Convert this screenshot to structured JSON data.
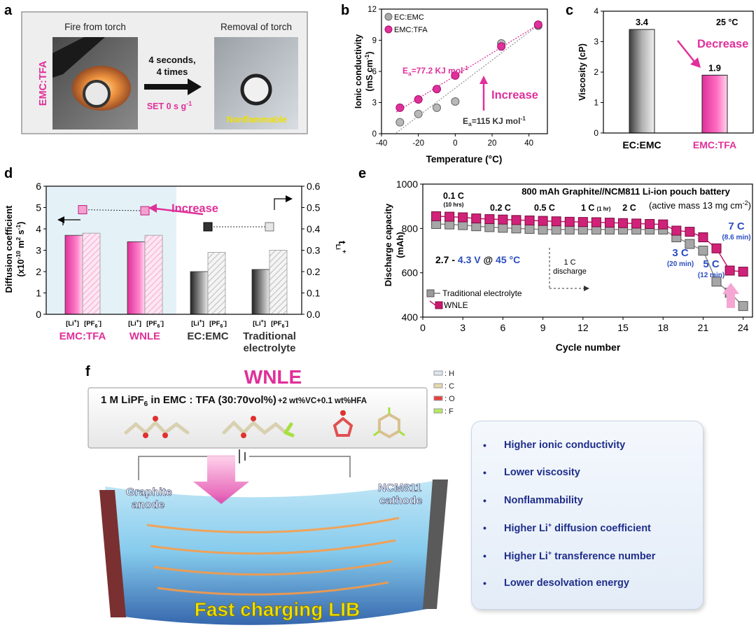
{
  "panels": {
    "a": "a",
    "b": "b",
    "c": "c",
    "d": "d",
    "e": "e",
    "f": "f"
  },
  "colors": {
    "pink": "#e0309a",
    "gray": "#777777",
    "blue": "#2a4dbf",
    "navy": "#1f2e8a",
    "yellow": "#f0e000"
  },
  "panel_a": {
    "side_label": "EMC:TFA",
    "left_title": "Fire from torch",
    "right_title": "Removal of torch",
    "arrow_text_line1": "4 seconds,",
    "arrow_text_line2": "4 times",
    "set_text": "SET 0 s g",
    "set_sup": "-1",
    "nonflammable": "Nonflammable"
  },
  "chart_data": [
    {
      "panel": "b",
      "type": "scatter",
      "xlabel": "Temperature (°C)",
      "ylabel_line1": "Ionic conductivity",
      "ylabel_line2": "(mS cm",
      "ylabel_sup": "-1",
      "ylabel_close": ")",
      "xlim": [
        -40,
        50
      ],
      "ylim": [
        0,
        12
      ],
      "xticks": [
        "-40",
        "-20",
        "0",
        "20",
        "40"
      ],
      "yticks": [
        "0",
        "3",
        "6",
        "9",
        "12"
      ],
      "xtick_values": [
        -40,
        -20,
        0,
        20,
        40
      ],
      "ytick_values": [
        0,
        3,
        6,
        9,
        12
      ],
      "series": [
        {
          "name": "EC:EMC",
          "color": "#9a9a9a",
          "x": [
            -30,
            -20,
            -10,
            0,
            25,
            45
          ],
          "y": [
            1.1,
            1.9,
            2.5,
            3.1,
            8.7,
            10.4
          ]
        },
        {
          "name": "EMC:TFA",
          "color": "#e0309a",
          "x": [
            -30,
            -20,
            -10,
            0,
            25,
            45
          ],
          "y": [
            2.5,
            3.3,
            4.3,
            5.6,
            8.4,
            10.5
          ]
        }
      ],
      "annotations": {
        "ea_tfa_prefix": "E",
        "ea_tfa_sub": "a",
        "ea_tfa_value": "=77.2 KJ mol",
        "ea_emc_prefix": "E",
        "ea_emc_sub": "a",
        "ea_emc_value": "=115 KJ mol",
        "ea_unit_sup": "-1",
        "increase": "Increase"
      }
    },
    {
      "panel": "c",
      "type": "bar",
      "categories": [
        "EC:EMC",
        "EMC:TFA"
      ],
      "values": [
        3.4,
        1.9
      ],
      "value_labels": [
        "3.4",
        "1.9"
      ],
      "ylabel": "Viscosity (cP)",
      "ylim": [
        0,
        4
      ],
      "yticks": [
        "0",
        "1",
        "2",
        "3",
        "4"
      ],
      "ytick_values": [
        0,
        1,
        2,
        3,
        4
      ],
      "annotations": {
        "temperature": "25 °C",
        "decrease": "Decrease"
      }
    },
    {
      "panel": "d",
      "type": "bar",
      "groups": [
        "EMC:TFA",
        "WNLE",
        "EC:EMC",
        "Traditional electrolyte"
      ],
      "group_label_lines": [
        [
          "EMC:TFA"
        ],
        [
          "WNLE"
        ],
        [
          "EC:EMC"
        ],
        [
          "Traditional",
          "electrolyte"
        ]
      ],
      "sub_labels": {
        "li": "[Li",
        "li_sup": "+",
        "li_close": "]",
        "pf": "[PF",
        "pf_sub": "6",
        "pf_sup": "-",
        "pf_close": "]"
      },
      "diffusion_li": [
        3.7,
        3.4,
        2.0,
        2.1
      ],
      "diffusion_pf6": [
        3.8,
        3.7,
        2.9,
        3.0
      ],
      "transference_number": [
        0.49,
        0.485,
        0.41,
        0.41
      ],
      "ylabel_line1": "Diffusion coefficient",
      "ylabel_line2": "(x10",
      "ylabel_sup1": "-10",
      "ylabel_mid": " m",
      "ylabel_sup2": "2",
      "ylabel_end": " s",
      "ylabel_sup3": "-1",
      "ylabel_close": ")",
      "y2label": "t",
      "y2label_sub": "Li",
      "y2label_sup": "+",
      "ylim": [
        0,
        6
      ],
      "y2lim": [
        0,
        0.6
      ],
      "yticks": [
        "0",
        "1",
        "2",
        "3",
        "4",
        "5",
        "6"
      ],
      "ytick_values": [
        0,
        1,
        2,
        3,
        4,
        5,
        6
      ],
      "y2ticks": [
        "0.0",
        "0.1",
        "0.2",
        "0.3",
        "0.4",
        "0.5",
        "0.6"
      ],
      "y2tick_values": [
        0,
        0.1,
        0.2,
        0.3,
        0.4,
        0.5,
        0.6
      ],
      "annotations": {
        "increase": "Increase"
      }
    },
    {
      "panel": "e",
      "type": "line",
      "title": "800 mAh Graphite//NCM811 Li-ion pouch battery",
      "title_sub_prefix": "(active mass 13 mg cm",
      "title_sub_sup": "-2",
      "title_sub_close": ")",
      "xlabel": "Cycle number",
      "ylabel_line1": "Discharge capacity",
      "ylabel_line2": "(mAh)",
      "xlim": [
        0,
        24.7
      ],
      "ylim": [
        400,
        1000
      ],
      "xticks": [
        "0",
        "3",
        "6",
        "9",
        "12",
        "15",
        "18",
        "21",
        "24"
      ],
      "xtick_values": [
        0,
        3,
        6,
        9,
        12,
        15,
        18,
        21,
        24
      ],
      "yticks": [
        "400",
        "600",
        "800",
        "1000"
      ],
      "ytick_values": [
        400,
        600,
        800,
        1000
      ],
      "series": [
        {
          "name": "Traditional electrolyte",
          "color": "#8a8a8a",
          "x": [
            1,
            2,
            3,
            4,
            5,
            6,
            7,
            8,
            9,
            10,
            11,
            12,
            13,
            14,
            15,
            16,
            17,
            18,
            19,
            20,
            21,
            22,
            23,
            24
          ],
          "y": [
            820,
            818,
            815,
            810,
            806,
            803,
            800,
            798,
            795,
            795,
            795,
            795,
            795,
            795,
            795,
            795,
            795,
            795,
            760,
            730,
            700,
            560,
            510,
            450
          ]
        },
        {
          "name": "WNLE",
          "color": "#c8186e",
          "x": [
            1,
            2,
            3,
            4,
            5,
            6,
            7,
            8,
            9,
            10,
            11,
            12,
            13,
            14,
            15,
            16,
            17,
            18,
            19,
            20,
            21,
            22,
            23,
            24
          ],
          "y": [
            855,
            853,
            850,
            845,
            842,
            840,
            838,
            836,
            834,
            832,
            830,
            829,
            828,
            826,
            824,
            822,
            820,
            818,
            790,
            785,
            760,
            710,
            610,
            605
          ]
        }
      ],
      "annotations": {
        "rate_01c": "0.1 C",
        "rate_01c_time": "(10 hrs)",
        "rate_02c": "0.2 C",
        "rate_05c": "0.5 C",
        "rate_1c": "1 C",
        "rate_1c_time": "(1 hr)",
        "rate_2c": "2 C",
        "rate_3c": "3 C",
        "rate_3c_time": "(20 min)",
        "rate_5c": "5 C",
        "rate_5c_time": "(12 min)",
        "rate_7c": "7 C",
        "rate_7c_time": "(8.6 min)",
        "discharge_line1": "1 C",
        "discharge_line2": "discharge",
        "voltage_a": "2.7 - ",
        "voltage_b": "4.3 V",
        "voltage_c": " @ ",
        "voltage_d": "45 °C"
      }
    }
  ],
  "panel_f": {
    "title": "WNLE",
    "formula_a": "1 M LiPF",
    "formula_sub": "6",
    "formula_b": " in EMC : TFA (30:70vol%)",
    "formula_c": "+2 wt%VC+0.1 wt%HFA",
    "legend_h": ": H",
    "legend_c": ": C",
    "legend_o": ": O",
    "legend_f": ": F",
    "anode_line1": "Graphite",
    "anode_line2": "anode",
    "cathode_line1": "NCM811",
    "cathode_line2": "cathode",
    "bottom_text": "Fast charging LIB"
  },
  "bullets": {
    "marker": "•",
    "items": [
      {
        "text": "Higher ionic conductivity"
      },
      {
        "text": "Lower viscosity"
      },
      {
        "text": "Nonflammability"
      },
      {
        "text": "Higher Li",
        "sup": "+",
        "rest": " diffusion coefficient"
      },
      {
        "text": "Higher Li",
        "sup": "+",
        "rest": " transference number"
      },
      {
        "text": "Lower desolvation energy"
      }
    ]
  }
}
